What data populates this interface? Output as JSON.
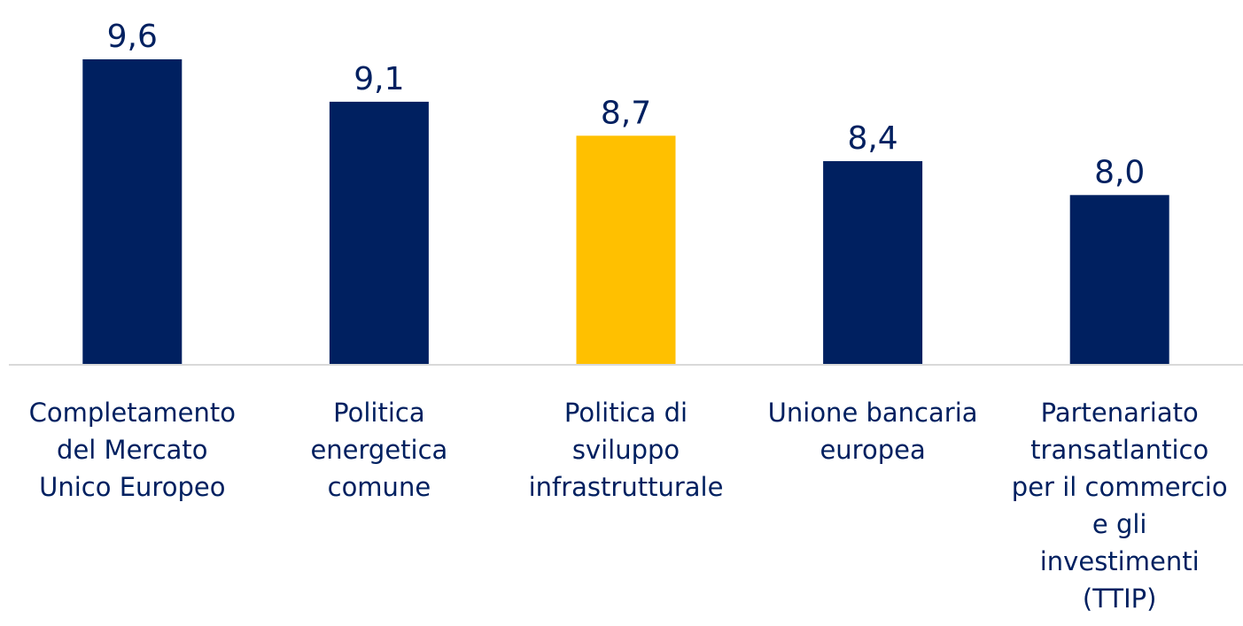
{
  "chart_data": {
    "type": "bar",
    "categories": [
      "Completamento del Mercato Unico Europeo",
      "Politica energetica comune",
      "Politica di sviluppo infrastrutturale",
      "Unione bancaria europea",
      "Partenariato transatlantico per il commercio e gli investimenti (TTIP)"
    ],
    "category_lines": [
      [
        "Completamento",
        "del Mercato",
        "Unico Europeo"
      ],
      [
        "Politica",
        "energetica",
        "comune"
      ],
      [
        "Politica di",
        "sviluppo",
        "infrastrutturale"
      ],
      [
        "Unione bancaria",
        "europea"
      ],
      [
        "Partenariato",
        "transatlantico",
        "per il commercio",
        "e gli",
        "investimenti",
        "(TTIP)"
      ]
    ],
    "values": [
      9.6,
      9.1,
      8.7,
      8.4,
      8.0
    ],
    "value_labels": [
      "9,6",
      "9,1",
      "8,7",
      "8,4",
      "8,0"
    ],
    "colors": [
      "#002060",
      "#002060",
      "#FFC000",
      "#002060",
      "#002060"
    ],
    "label_color": "#002060",
    "axis_color": "#d9d9d9",
    "ylim": [
      6.0,
      9.6
    ],
    "grid": false,
    "legend": "none"
  }
}
